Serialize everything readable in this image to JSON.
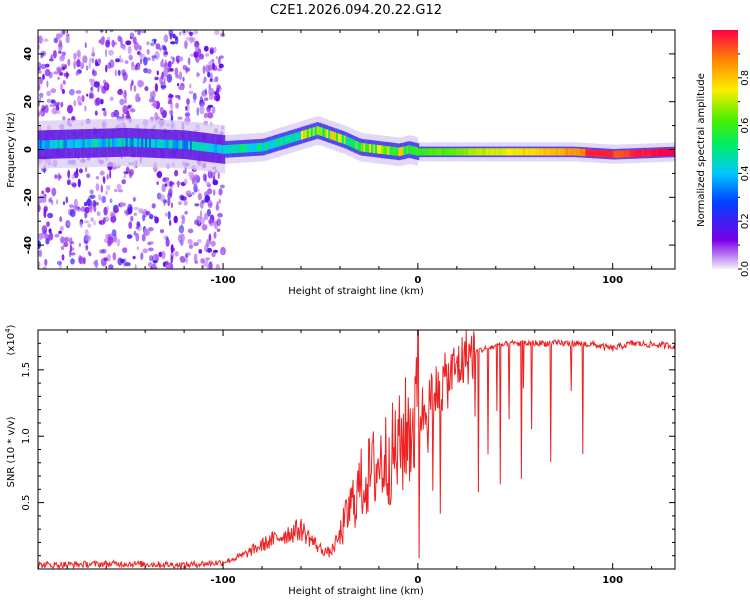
{
  "title": "C2E1.2026.094.20.22.G12",
  "colors": {
    "snr_line": "#ee2222",
    "axis": "#000000"
  },
  "chart_data": [
    {
      "type": "heatmap",
      "name": "spectrogram",
      "xlabel": "Height of straight line (km)",
      "ylabel": "Frequency (Hz)",
      "xlim": [
        -195,
        132
      ],
      "ylim": [
        -50,
        50
      ],
      "xticks": [
        "-100",
        "0",
        "100"
      ],
      "yticks": [
        "40",
        "20",
        "0",
        "-20",
        "-40"
      ],
      "colorbar": {
        "label": "Normalized spectral amplitude",
        "range": [
          0,
          1
        ],
        "ticks": [
          "0.0",
          "0.2",
          "0.4",
          "0.6",
          "0.8"
        ]
      },
      "trace_center_hz": [
        [
          -195,
          2
        ],
        [
          -150,
          3
        ],
        [
          -120,
          2
        ],
        [
          -100,
          0
        ],
        [
          -80,
          1
        ],
        [
          -60,
          6
        ],
        [
          -52,
          8
        ],
        [
          -45,
          6
        ],
        [
          -38,
          4
        ],
        [
          -30,
          1
        ],
        [
          -20,
          0
        ],
        [
          -10,
          -1
        ],
        [
          -5,
          0
        ],
        [
          0,
          -1
        ],
        [
          20,
          -1
        ],
        [
          50,
          -1
        ],
        [
          80,
          -1
        ],
        [
          100,
          -2
        ],
        [
          132,
          -1
        ]
      ]
    },
    {
      "type": "line",
      "name": "snr",
      "xlabel": "Height of straight line (km)",
      "ylabel": "SNR (10 * v/v)",
      "y_multiplier": "(x10^4)",
      "y_multiplier_base": "(x10",
      "y_multiplier_exp": "4",
      "y_multiplier_close": ")",
      "xlim": [
        -195,
        132
      ],
      "ylim": [
        0,
        1.8
      ],
      "xticks": [
        "-100",
        "0",
        "100"
      ],
      "yticks": [
        "1.5",
        "1.0",
        "0.5"
      ],
      "series": [
        {
          "name": "SNR",
          "x": [
            -195,
            -150,
            -120,
            -100,
            -90,
            -80,
            -70,
            -60,
            -50,
            -45,
            -40,
            -35,
            -30,
            -25,
            -20,
            -15,
            -10,
            -5,
            0,
            5,
            10,
            15,
            20,
            25,
            30,
            40,
            50,
            60,
            70,
            80,
            90,
            100,
            110,
            120,
            132
          ],
          "y": [
            0.03,
            0.04,
            0.03,
            0.05,
            0.1,
            0.18,
            0.25,
            0.3,
            0.15,
            0.12,
            0.25,
            0.45,
            0.62,
            0.7,
            0.8,
            0.85,
            0.9,
            1.05,
            1.15,
            1.22,
            1.35,
            1.42,
            1.52,
            1.6,
            1.64,
            1.68,
            1.7,
            1.7,
            1.7,
            1.7,
            1.69,
            1.66,
            1.7,
            1.69,
            1.68
          ]
        }
      ]
    }
  ]
}
